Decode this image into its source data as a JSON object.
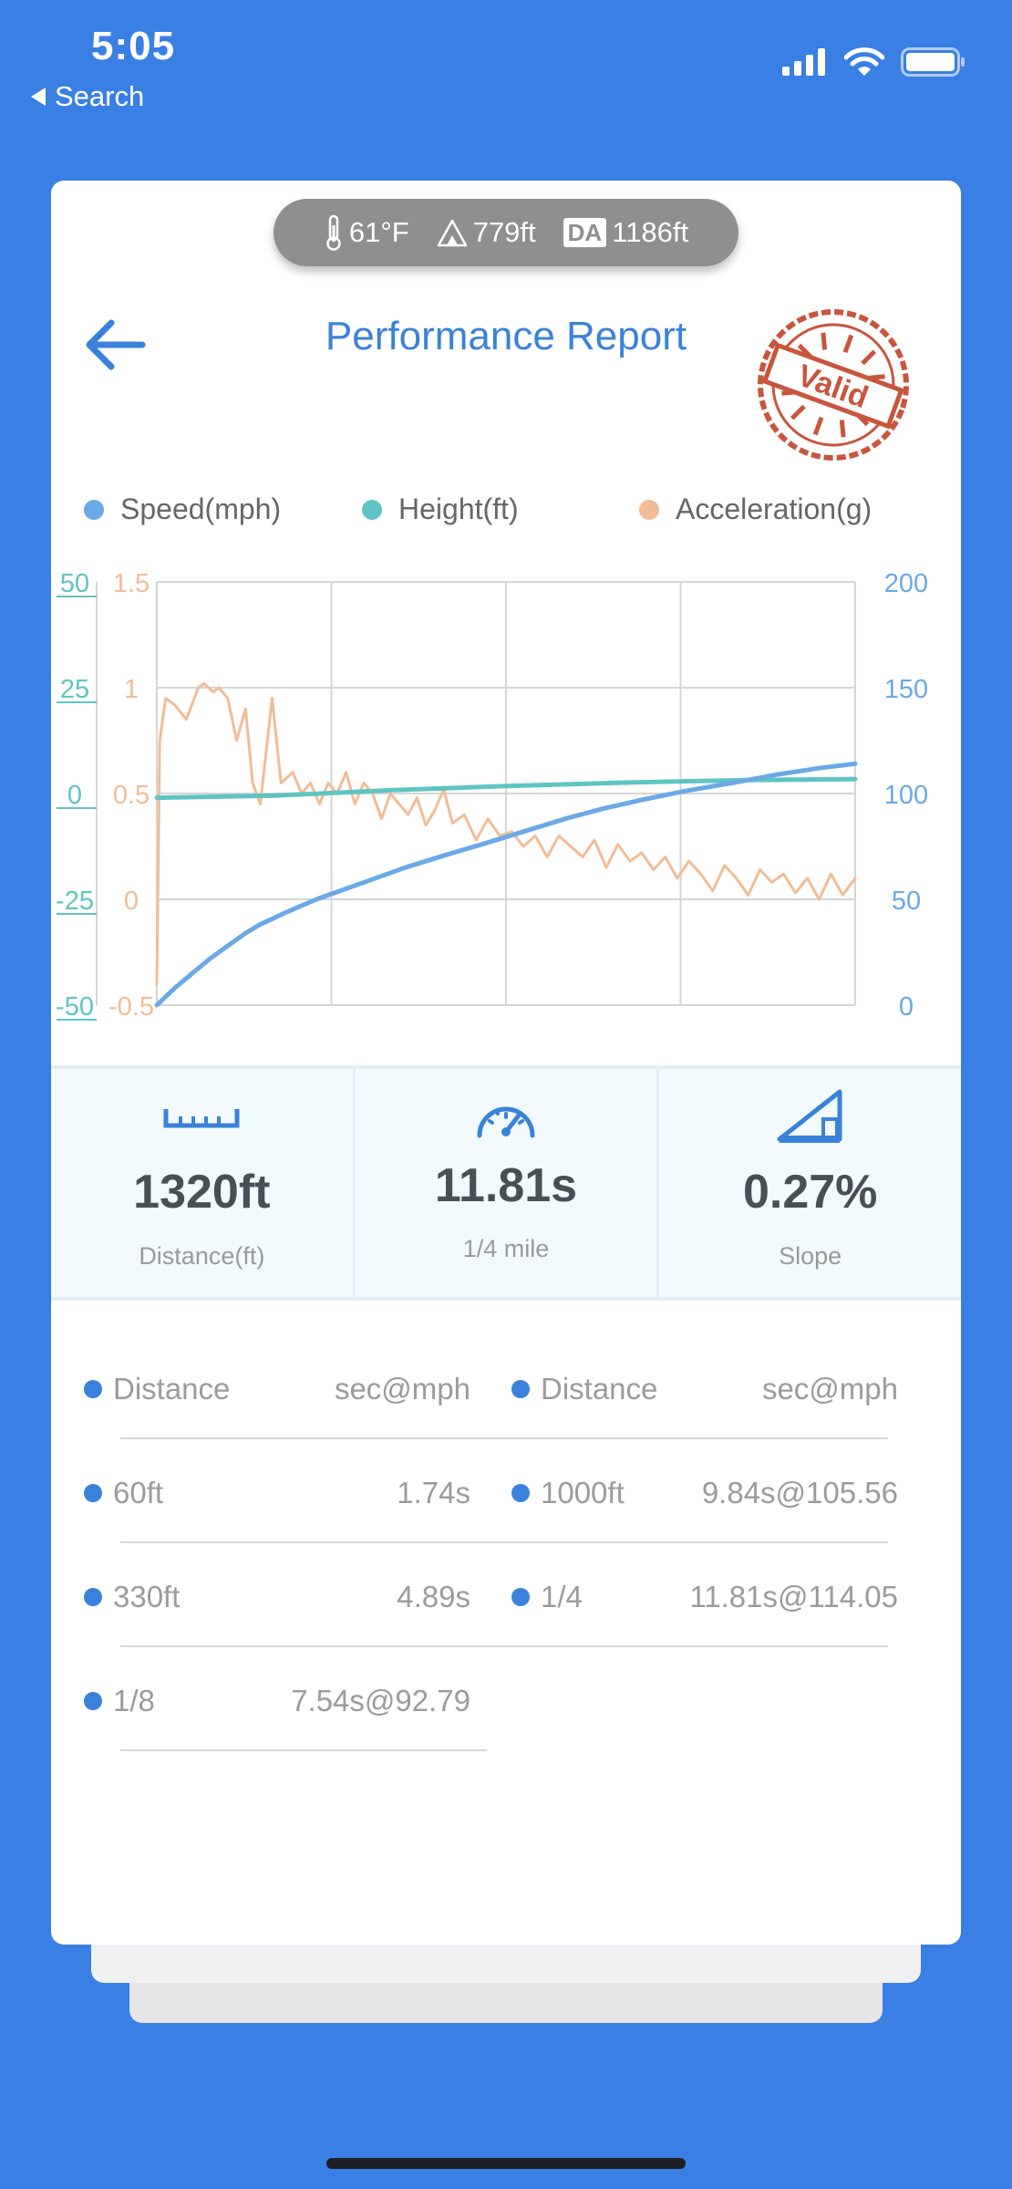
{
  "status_bar": {
    "time": "5:05",
    "back_label": "Search"
  },
  "weather": {
    "temperature": "61°F",
    "altitude": "779ft",
    "da_label": "DA",
    "density_altitude": "1186ft"
  },
  "header": {
    "title": "Performance Report",
    "stamp_text": "Valid"
  },
  "legend": [
    {
      "label": "Speed(mph)",
      "color": "#6aa9e5"
    },
    {
      "label": "Height(ft)",
      "color": "#5fc4c4"
    },
    {
      "label": "Acceleration(g)",
      "color": "#f0bd96"
    }
  ],
  "chart_data": {
    "type": "line",
    "xlabel": "",
    "grid": true,
    "x_range": [
      0,
      11.81
    ],
    "axes": {
      "height_left": {
        "ticks": [
          "50",
          "25",
          "0",
          "-25",
          "-50"
        ],
        "range": [
          -50,
          50
        ],
        "color": "#5fc4c4"
      },
      "accel_left": {
        "ticks": [
          "1.5",
          "1",
          "0.5",
          "0",
          "-0.5"
        ],
        "range": [
          -0.5,
          1.5
        ],
        "color": "#f0bd96"
      },
      "speed_right": {
        "ticks": [
          "200",
          "150",
          "100",
          "50",
          "0"
        ],
        "range": [
          0,
          200
        ],
        "color": "#6aa9e5"
      }
    },
    "series": [
      {
        "name": "Speed(mph)",
        "axis": "speed_right",
        "color": "#6aa9e5",
        "x": [
          0,
          0.3,
          0.6,
          0.9,
          1.2,
          1.5,
          1.74,
          2.2,
          2.7,
          3.2,
          3.7,
          4.2,
          4.89,
          5.5,
          6.2,
          6.9,
          7.54,
          8.2,
          8.9,
          9.84,
          10.5,
          11.2,
          11.81
        ],
        "y": [
          0,
          8,
          15,
          22,
          28,
          34,
          38,
          44,
          50,
          55,
          60,
          65,
          71,
          76,
          82,
          88,
          92.79,
          97,
          101,
          105.56,
          109,
          112,
          114.05
        ]
      },
      {
        "name": "Height(ft)",
        "axis": "height_left",
        "color": "#5fc4c4",
        "x": [
          0,
          2,
          4,
          6,
          8,
          10,
          11.81
        ],
        "y": [
          -1,
          -0.5,
          0.8,
          1.8,
          2.6,
          3.2,
          3.4
        ]
      },
      {
        "name": "Acceleration(g)",
        "axis": "accel_left",
        "color": "#f0bd96",
        "x": [
          0,
          0.05,
          0.15,
          0.3,
          0.5,
          0.7,
          0.8,
          0.95,
          1.05,
          1.2,
          1.35,
          1.5,
          1.62,
          1.75,
          1.85,
          1.95,
          2.1,
          2.3,
          2.45,
          2.6,
          2.75,
          2.9,
          3.05,
          3.2,
          3.35,
          3.5,
          3.65,
          3.8,
          3.95,
          4.1,
          4.25,
          4.4,
          4.55,
          4.7,
          4.85,
          5.0,
          5.2,
          5.4,
          5.6,
          5.8,
          6.0,
          6.2,
          6.4,
          6.6,
          6.8,
          7.0,
          7.2,
          7.4,
          7.6,
          7.8,
          8.0,
          8.2,
          8.4,
          8.6,
          8.8,
          9.0,
          9.2,
          9.4,
          9.6,
          9.8,
          10.0,
          10.2,
          10.4,
          10.6,
          10.8,
          11.0,
          11.2,
          11.4,
          11.6,
          11.81
        ],
        "y": [
          -0.4,
          0.75,
          0.95,
          0.92,
          0.85,
          1.0,
          1.02,
          0.98,
          1.0,
          0.95,
          0.75,
          0.9,
          0.55,
          0.45,
          0.7,
          0.95,
          0.55,
          0.6,
          0.5,
          0.55,
          0.45,
          0.55,
          0.5,
          0.6,
          0.45,
          0.55,
          0.5,
          0.38,
          0.5,
          0.45,
          0.4,
          0.48,
          0.35,
          0.42,
          0.52,
          0.36,
          0.4,
          0.28,
          0.38,
          0.3,
          0.32,
          0.25,
          0.3,
          0.2,
          0.3,
          0.25,
          0.2,
          0.28,
          0.15,
          0.26,
          0.18,
          0.22,
          0.14,
          0.2,
          0.1,
          0.18,
          0.12,
          0.04,
          0.16,
          0.1,
          0.02,
          0.14,
          0.08,
          0.12,
          0.03,
          0.1,
          0.0,
          0.12,
          0.02,
          0.1
        ]
      }
    ]
  },
  "stats": [
    {
      "value": "1320ft",
      "label": "Distance(ft)"
    },
    {
      "value": "11.81s",
      "label": "1/4 mile"
    },
    {
      "value": "0.27%",
      "label": "Slope"
    }
  ],
  "splits": {
    "header": {
      "distance": "Distance",
      "time": "sec@mph"
    },
    "left": [
      {
        "distance": "60ft",
        "time": "1.74s"
      },
      {
        "distance": "330ft",
        "time": "4.89s"
      },
      {
        "distance": "1/8",
        "time": "7.54s@92.79"
      }
    ],
    "right": [
      {
        "distance": "1000ft",
        "time": "9.84s@105.56"
      },
      {
        "distance": "1/4",
        "time": "11.81s@114.05"
      }
    ]
  }
}
